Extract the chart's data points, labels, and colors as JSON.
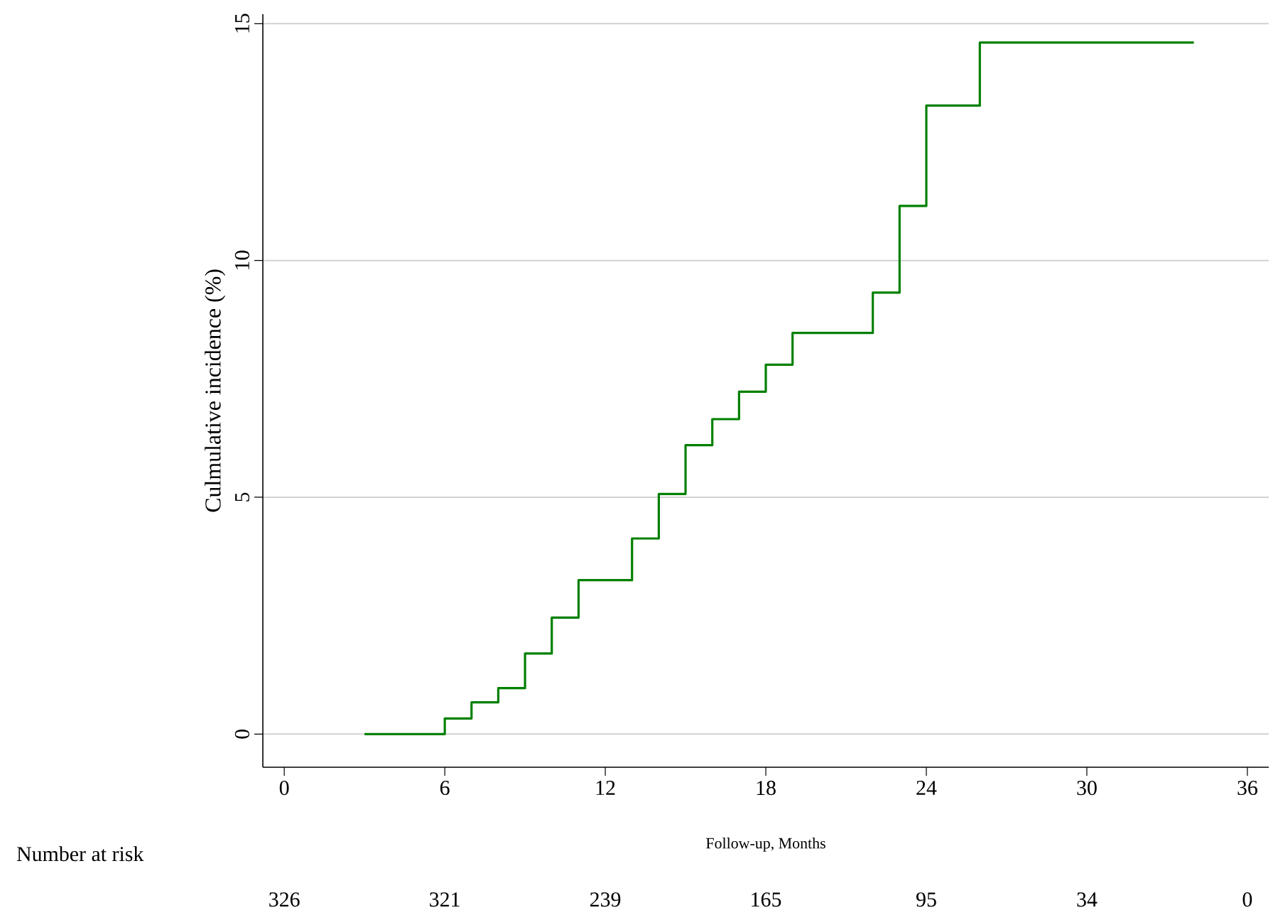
{
  "chart_data": {
    "type": "step",
    "xlabel": "Follow-up, Months",
    "ylabel": "Culmulative incidence (%)",
    "x": [
      3,
      6,
      7,
      8,
      9,
      10,
      11,
      13,
      14,
      15,
      16,
      17,
      18,
      19,
      22,
      23,
      24,
      26,
      34
    ],
    "series": [
      {
        "color": "#008000",
        "values": [
          0,
          0.33,
          0.67,
          0.97,
          1.7,
          2.46,
          3.25,
          4.13,
          5.07,
          6.1,
          6.65,
          7.23,
          7.8,
          8.47,
          9.32,
          11.15,
          13.27,
          14.6,
          14.6
        ]
      }
    ],
    "xlim": [
      -0.8,
      36.8
    ],
    "ylim": [
      -0.7,
      15.2
    ],
    "xticks": [
      0,
      6,
      12,
      18,
      24,
      30,
      36
    ],
    "yticks": [
      0,
      5,
      10,
      15
    ],
    "grid": "y",
    "annotations": [
      "Number at risk",
      "326",
      "321",
      "239",
      "165",
      "95",
      "34",
      "0"
    ]
  }
}
